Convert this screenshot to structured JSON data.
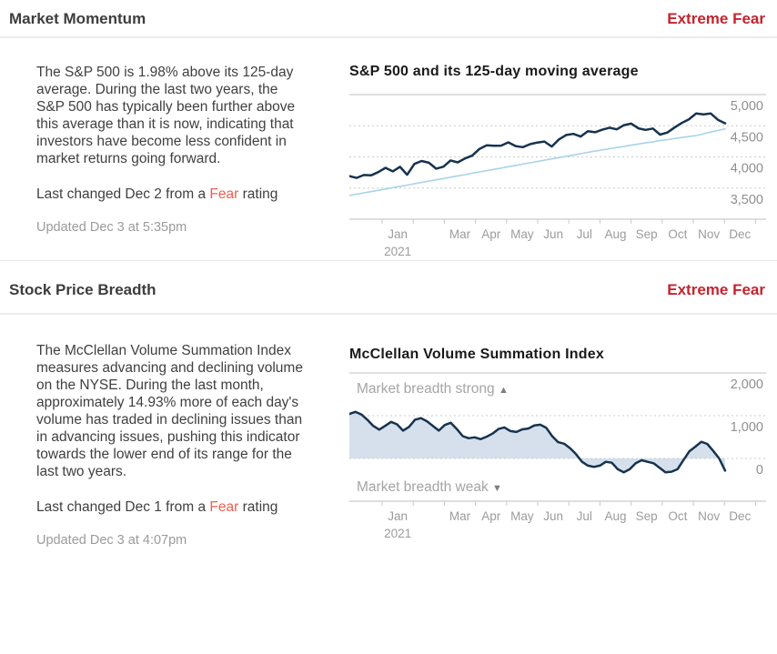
{
  "colors": {
    "rating_red": "#c3242e",
    "fear_link_red": "#f05c4e",
    "body_text": "#404040",
    "muted_text": "#9b9b9b",
    "axis_label_gray": "#8f8f8f",
    "sp500_line": "#16334f",
    "moving_average_line": "#a9d3e9",
    "area_fill": "#d6e0ec",
    "gridline": "#cccccc",
    "divider": "#ebebeb"
  },
  "sections": [
    {
      "title": "Market Momentum",
      "rating": "Extreme Fear",
      "paragraph": "The S&P 500 is 1.98% above its 125-day average. During the last two years, the S&P 500 has typically been further above this average than it is now, indicating that investors have become less confident in market returns going forward.",
      "last_changed_prefix": "Last changed Dec 2 from a ",
      "last_changed_link": "Fear",
      "last_changed_suffix": " rating",
      "updated": "Updated Dec 3 at 5:35pm"
    },
    {
      "title": "Stock Price Breadth",
      "rating": "Extreme Fear",
      "paragraph": "The McClellan Volume Summation Index measures advancing and declining volume on the NYSE. During the last month, approximately 14.93% more of each day's volume has traded in declining issues than in advancing issues, pushing this indicator towards the lower end of its range for the last two years.",
      "last_changed_prefix": "Last changed Dec 1 from a ",
      "last_changed_link": "Fear",
      "last_changed_suffix": " rating",
      "updated": "Updated Dec 3 at 4:07pm"
    }
  ],
  "chart_data": [
    {
      "type": "line",
      "title": "S&P 500 and its 125-day moving average",
      "ylim": [
        3000,
        5000
      ],
      "yticks": [
        5000,
        4500,
        4000,
        3500
      ],
      "ytick_labels": [
        "5,000",
        "4,500",
        "4,000",
        "3,500"
      ],
      "x_months": [
        "Jan",
        "",
        "Mar",
        "Apr",
        "May",
        "Jun",
        "Jul",
        "Aug",
        "Sep",
        "Oct",
        "Nov",
        "Dec"
      ],
      "year_label": "2021",
      "grid": "dotted-horizontal",
      "legend": "none",
      "series": [
        {
          "name": "S&P 500",
          "color": "#16334f",
          "width": 2.5,
          "values": [
            3692,
            3663,
            3709,
            3703,
            3756,
            3825,
            3768,
            3841,
            3714,
            3887,
            3935,
            3907,
            3811,
            3842,
            3943,
            3913,
            3975,
            4020,
            4129,
            4185,
            4180,
            4181,
            4233,
            4174,
            4156,
            4204,
            4230,
            4247,
            4166,
            4281,
            4352,
            4370,
            4327,
            4412,
            4395,
            4437,
            4468,
            4442,
            4509,
            4535,
            4458,
            4433,
            4455,
            4357,
            4391,
            4471,
            4545,
            4605,
            4698,
            4683,
            4698,
            4595,
            4538
          ]
        },
        {
          "name": "125-day moving average",
          "color": "#a9d3e9",
          "width": 1.6,
          "values": [
            3380,
            3401,
            3422,
            3443,
            3464,
            3485,
            3506,
            3527,
            3548,
            3569,
            3590,
            3611,
            3632,
            3653,
            3674,
            3695,
            3716,
            3737,
            3758,
            3779,
            3800,
            3821,
            3842,
            3863,
            3884,
            3905,
            3926,
            3947,
            3968,
            3989,
            4010,
            4031,
            4052,
            4073,
            4094,
            4113,
            4132,
            4151,
            4170,
            4189,
            4207,
            4225,
            4243,
            4261,
            4278,
            4295,
            4311,
            4327,
            4343,
            4371,
            4398,
            4425,
            4450
          ]
        }
      ]
    },
    {
      "type": "area",
      "title": "McClellan Volume Summation Index",
      "ylim": [
        -1000,
        2000
      ],
      "yticks": [
        2000,
        1000,
        0
      ],
      "ytick_labels": [
        "2,000",
        "1,000",
        "0"
      ],
      "x_months": [
        "Jan",
        "",
        "Mar",
        "Apr",
        "May",
        "Jun",
        "Jul",
        "Aug",
        "Sep",
        "Oct",
        "Nov",
        "Dec"
      ],
      "year_label": "2021",
      "grid": "dotted-horizontal",
      "legend": "none",
      "annotations": [
        {
          "text": "Market breadth strong",
          "arrow": "▲",
          "position": "top"
        },
        {
          "text": "Market breadth weak",
          "arrow": "▼",
          "position": "bottom"
        }
      ],
      "series": [
        {
          "name": "McClellan Volume Summation Index",
          "color": "#16334f",
          "width": 2.5,
          "fill": "#d6e0ec",
          "threshold": 0,
          "values": [
            1040,
            1090,
            1030,
            907,
            761,
            674,
            761,
            856,
            798,
            652,
            739,
            907,
            943,
            870,
            761,
            652,
            783,
            835,
            689,
            522,
            472,
            493,
            450,
            509,
            580,
            689,
            726,
            640,
            620,
            680,
            700,
            770,
            789,
            720,
            522,
            381,
            345,
            239,
            99,
            -78,
            -169,
            -197,
            -169,
            -78,
            -99,
            -254,
            -323,
            -254,
            -112,
            -42,
            -78,
            -112,
            -218,
            -323,
            -311,
            -254,
            -42,
            169,
            275,
            389,
            340,
            177,
            0,
            -285
          ]
        }
      ]
    }
  ]
}
